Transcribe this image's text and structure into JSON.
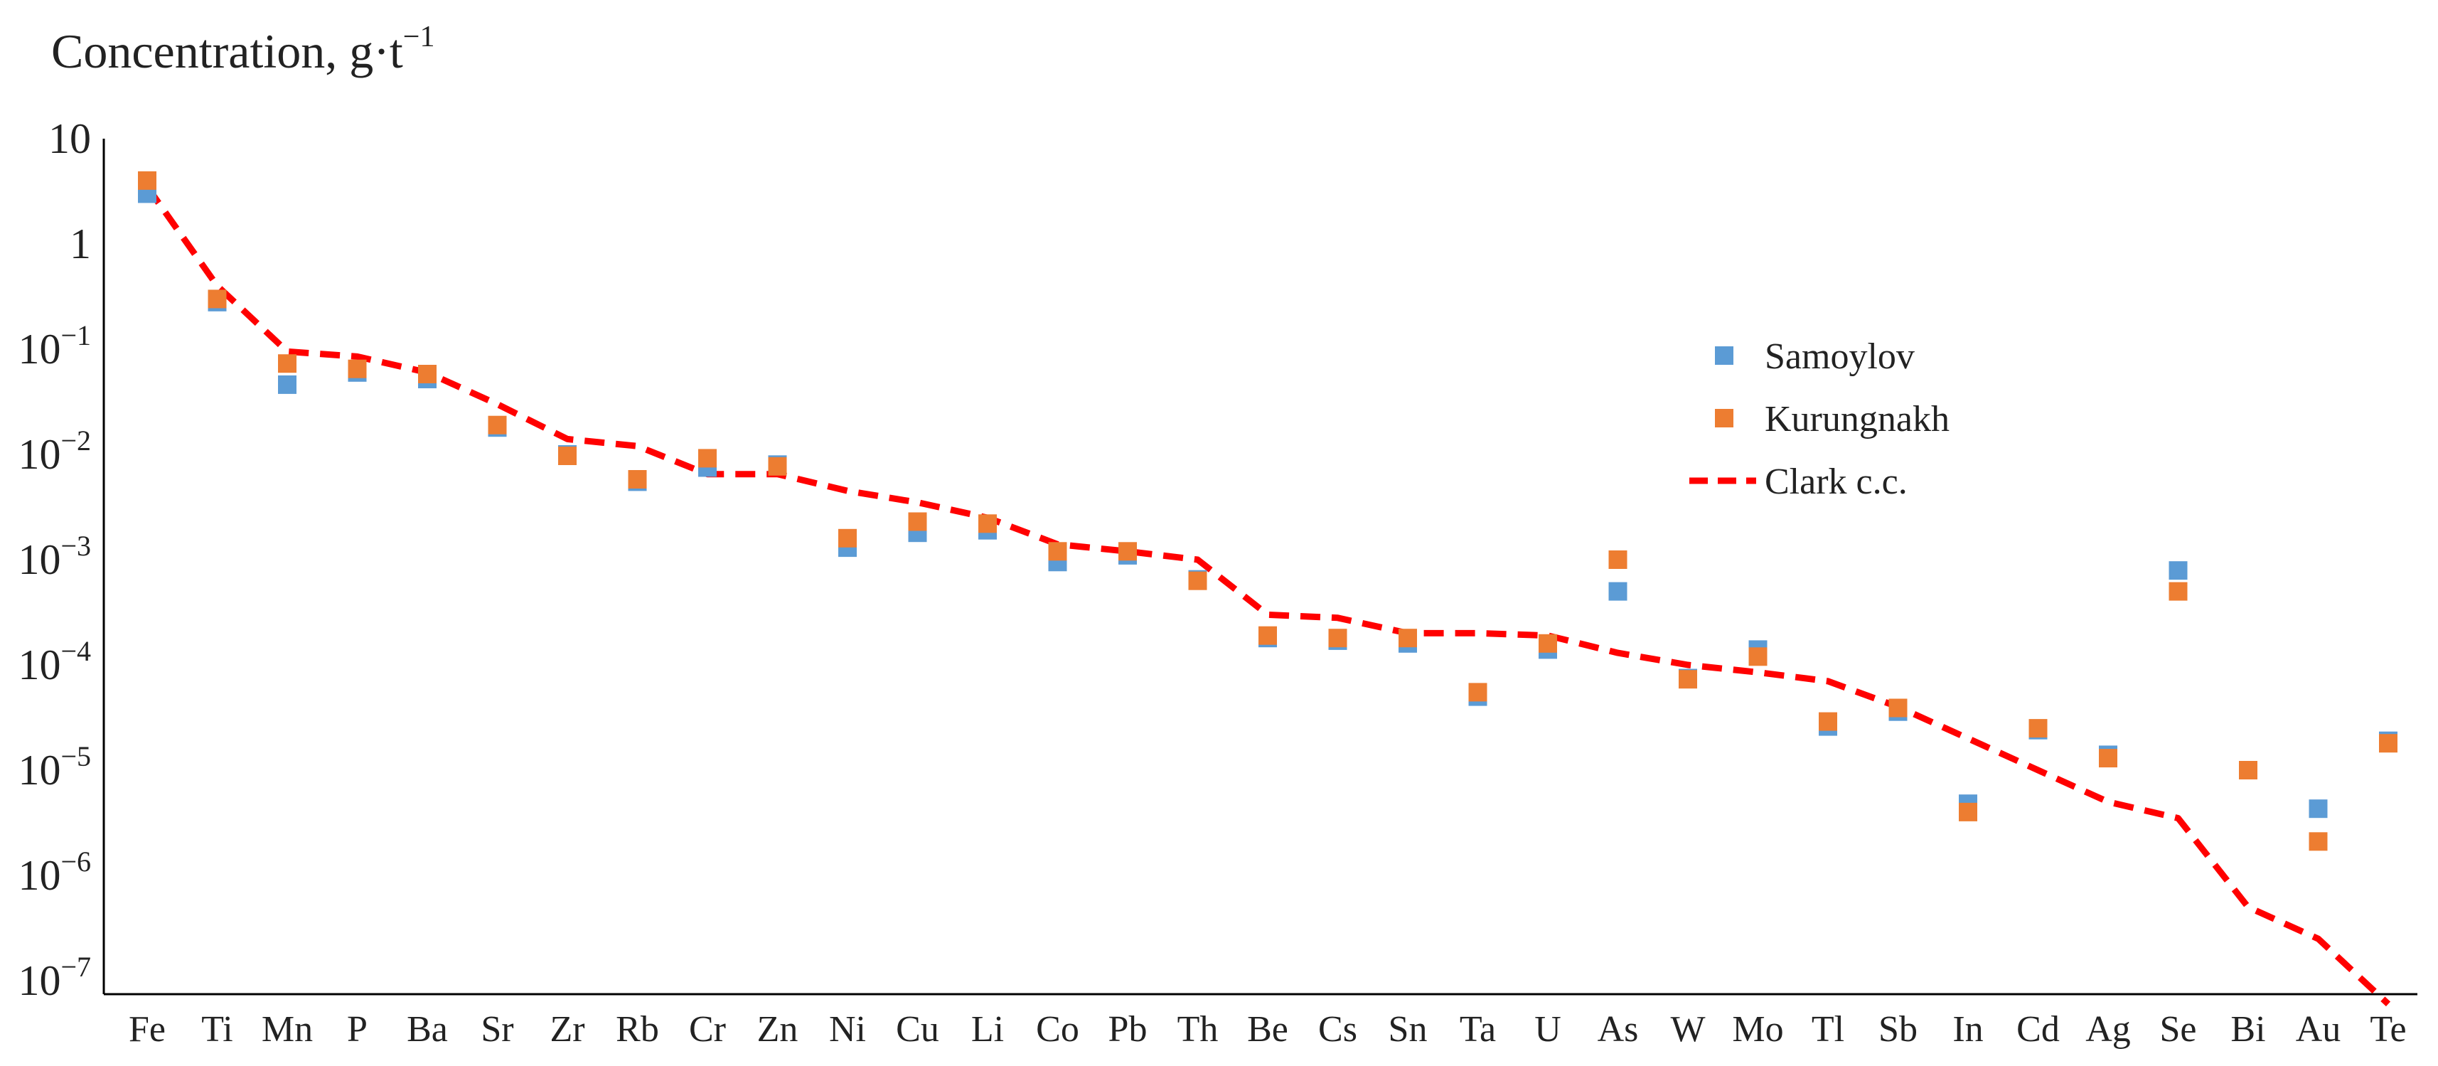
{
  "chart_data": {
    "type": "scatter",
    "title": "",
    "xlabel": "",
    "ylabel": "Concentration, g·t",
    "ylabel_superscript": "−1",
    "yscale": "log",
    "ylim": [
      7e-08,
      10
    ],
    "ytick_labels": [
      {
        "value": 10,
        "base": "10",
        "exp": ""
      },
      {
        "value": 1,
        "base": "1",
        "exp": ""
      },
      {
        "value": 0.1,
        "base": "10",
        "exp": "−1"
      },
      {
        "value": 0.01,
        "base": "10",
        "exp": "−2"
      },
      {
        "value": 0.001,
        "base": "10",
        "exp": "−3"
      },
      {
        "value": 0.0001,
        "base": "10",
        "exp": "−4"
      },
      {
        "value": 1e-05,
        "base": "10",
        "exp": "−5"
      },
      {
        "value": 1e-06,
        "base": "10",
        "exp": "−6"
      },
      {
        "value": 1e-07,
        "base": "10",
        "exp": "−7"
      }
    ],
    "categories": [
      "Fe",
      "Ti",
      "Mn",
      "P",
      "Ba",
      "Sr",
      "Zr",
      "Rb",
      "Cr",
      "Zn",
      "Ni",
      "Cu",
      "Li",
      "Co",
      "Pb",
      "Th",
      "Be",
      "Cs",
      "Sn",
      "Ta",
      "U",
      "As",
      "W",
      "Mo",
      "Tl",
      "Sb",
      "In",
      "Cd",
      "Ag",
      "Se",
      "Bi",
      "Au",
      "Te"
    ],
    "grid": false,
    "legend_position": "right",
    "series": [
      {
        "name": "Samoylov",
        "kind": "marker",
        "color": "#5B9BD5",
        "values": [
          3.0,
          0.28,
          0.046,
          0.06,
          0.052,
          0.018,
          0.01,
          0.0055,
          0.0075,
          0.008,
          0.0013,
          0.0018,
          0.0019,
          0.00095,
          0.0011,
          0.00065,
          0.00018,
          0.00017,
          0.00016,
          5e-05,
          0.00014,
          0.0005,
          7.5e-05,
          0.00014,
          2.6e-05,
          3.6e-05,
          4.8e-06,
          2.4e-05,
          1.4e-05,
          0.00079,
          1e-05,
          4.3e-06,
          1.9e-05
        ]
      },
      {
        "name": "Kurungnakh",
        "kind": "marker",
        "color": "#ED7D31",
        "values": [
          4.0,
          0.3,
          0.073,
          0.065,
          0.058,
          0.019,
          0.0097,
          0.0058,
          0.0092,
          0.0077,
          0.0016,
          0.0023,
          0.0022,
          0.0012,
          0.0012,
          0.00063,
          0.00019,
          0.00018,
          0.00018,
          5.5e-05,
          0.00016,
          0.001,
          7.3e-05,
          0.00012,
          2.9e-05,
          3.9e-05,
          4e-06,
          2.5e-05,
          1.3e-05,
          0.0005,
          1e-05,
          2.1e-06,
          1.8e-05
        ]
      },
      {
        "name": "Clark c.c.",
        "kind": "line",
        "color": "#FF0000",
        "dash": "dashed",
        "values": [
          3.5,
          0.4,
          0.095,
          0.085,
          0.06,
          0.03,
          0.014,
          0.012,
          0.0065,
          0.0065,
          0.0045,
          0.0035,
          0.0025,
          0.0014,
          0.0012,
          0.001,
          0.0003,
          0.00028,
          0.0002,
          0.0002,
          0.00019,
          0.00013,
          0.0001,
          8.5e-05,
          7e-05,
          4e-05,
          2e-05,
          1e-05,
          5e-06,
          3.5e-06,
          5e-07,
          2.5e-07,
          6e-08
        ]
      }
    ]
  }
}
